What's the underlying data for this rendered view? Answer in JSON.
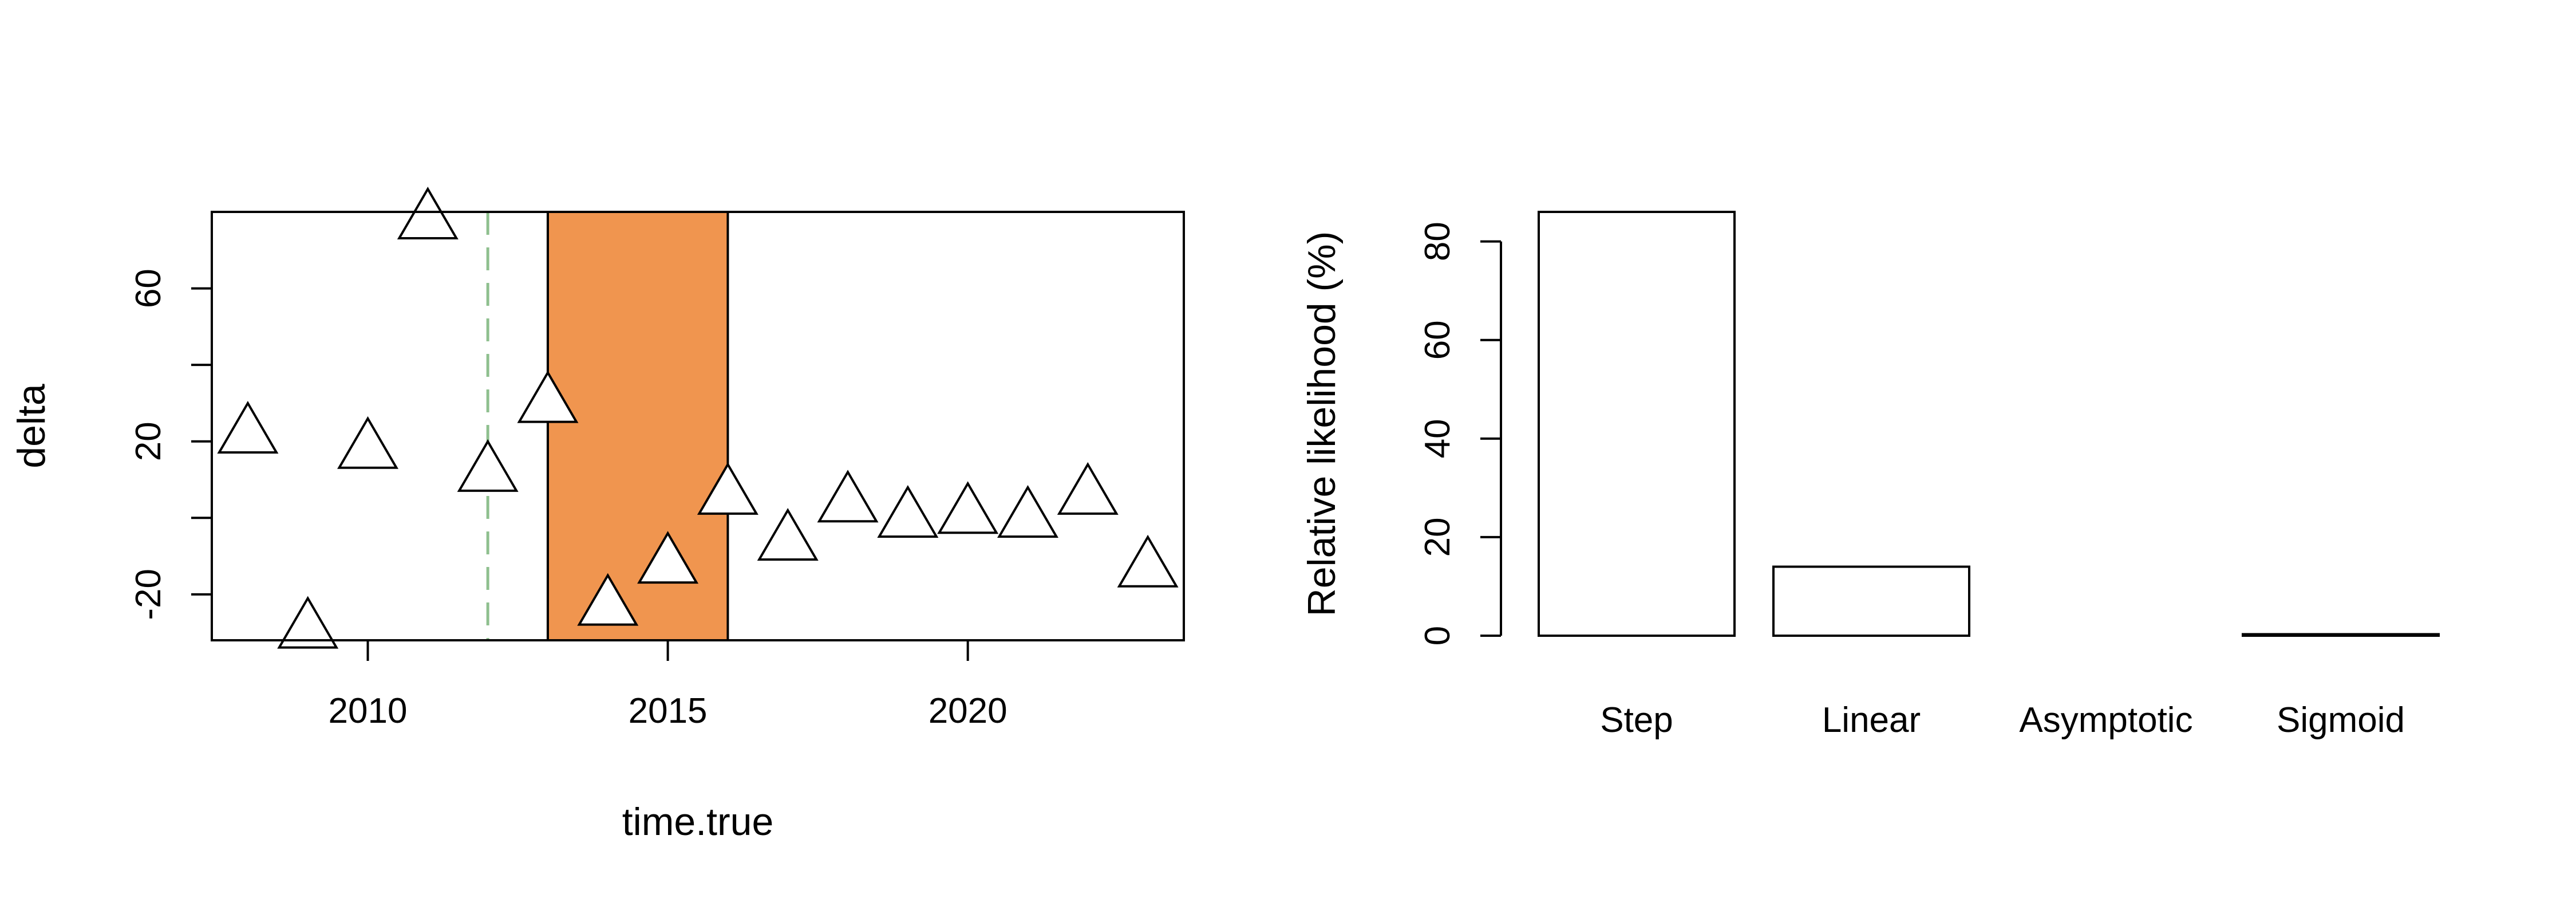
{
  "chart_data": [
    {
      "type": "scatter",
      "xlabel": "time.true",
      "ylabel": "delta",
      "xlim": [
        2007.4,
        2023.6
      ],
      "ylim": [
        -32,
        80
      ],
      "xticks": [
        2010,
        2015,
        2020
      ],
      "xtick_labels": [
        "2010",
        "2015",
        "2020"
      ],
      "yticks": [
        -20,
        0,
        20,
        40,
        60
      ],
      "ytick_labels": [
        "-20",
        "",
        "20",
        "",
        "60"
      ],
      "marker": "open-triangle",
      "points": [
        {
          "x": 2008,
          "y": 22
        },
        {
          "x": 2009,
          "y": -29
        },
        {
          "x": 2010,
          "y": 18
        },
        {
          "x": 2011,
          "y": 78
        },
        {
          "x": 2012,
          "y": 12
        },
        {
          "x": 2013,
          "y": 30
        },
        {
          "x": 2014,
          "y": -23
        },
        {
          "x": 2015,
          "y": -12
        },
        {
          "x": 2016,
          "y": 6
        },
        {
          "x": 2017,
          "y": -6
        },
        {
          "x": 2018,
          "y": 4
        },
        {
          "x": 2019,
          "y": 0
        },
        {
          "x": 2020,
          "y": 1
        },
        {
          "x": 2021,
          "y": 0
        },
        {
          "x": 2022,
          "y": 6
        },
        {
          "x": 2023,
          "y": -13
        }
      ],
      "shaded_interval": {
        "x_start": 2013,
        "x_end": 2016,
        "color": "#F0954F"
      },
      "vertical_line": {
        "x": 2012,
        "color": "#8FC08F",
        "style": "dashed"
      },
      "boundary_line": {
        "x": 2013,
        "color": "#000000"
      }
    },
    {
      "type": "bar",
      "categories": [
        "Step",
        "Linear",
        "Asymptotic",
        "Sigmoid"
      ],
      "values": [
        86,
        14,
        0,
        0.3
      ],
      "ylabel": "Relative likelihood (%)",
      "ylim": [
        0,
        86
      ],
      "yticks": [
        0,
        20,
        40,
        60,
        80
      ],
      "ytick_labels": [
        "0",
        "20",
        "40",
        "60",
        "80"
      ],
      "bar_color": "#ffffff",
      "edge_color": "#000000"
    }
  ]
}
